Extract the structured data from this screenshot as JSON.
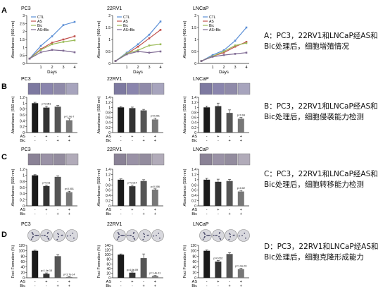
{
  "rows": [
    {
      "letter": "A",
      "type": "line",
      "xlabel": "Days",
      "ylabel": "Absorbance (450 nm)",
      "legend": [
        "CTL",
        "AS",
        "Bic",
        "AS+Bic"
      ],
      "series_colors": [
        "#5b8fd6",
        "#c0504d",
        "#9bbb59",
        "#7f6a93"
      ],
      "panels": [
        {
          "title": "PC3",
          "x": [
            0,
            1,
            2,
            3,
            4
          ],
          "ylim": [
            0,
            3
          ],
          "yticks": [
            "0",
            "0.5",
            "1",
            "1.5",
            "2",
            "2.5",
            "3"
          ],
          "series": [
            [
              0.3,
              1.1,
              1.7,
              2.4,
              2.6
            ],
            [
              0.3,
              0.9,
              1.3,
              1.5,
              1.7
            ],
            [
              0.3,
              0.85,
              1.2,
              1.35,
              1.45
            ],
            [
              0.3,
              0.7,
              0.85,
              0.8,
              0.7
            ]
          ]
        },
        {
          "title": "22RV1",
          "x": [
            0,
            1,
            2,
            3,
            4
          ],
          "ylim": [
            0,
            2
          ],
          "yticks": [
            "0",
            "0.5",
            "1",
            "1.5",
            "2"
          ],
          "series": [
            [
              0.1,
              0.45,
              0.8,
              1.2,
              1.75
            ],
            [
              0.1,
              0.4,
              0.7,
              1.05,
              1.4
            ],
            [
              0.1,
              0.42,
              0.55,
              0.75,
              0.8
            ],
            [
              0.1,
              0.38,
              0.5,
              0.45,
              0.5
            ]
          ]
        },
        {
          "title": "LNCaP",
          "x": [
            0,
            1,
            2,
            3,
            4
          ],
          "ylim": [
            0,
            2
          ],
          "yticks": [
            "0",
            "0.5",
            "1",
            "1.5",
            "2"
          ],
          "series": [
            [
              0.1,
              0.35,
              0.55,
              0.95,
              1.5
            ],
            [
              0.1,
              0.3,
              0.45,
              0.7,
              0.9
            ],
            [
              0.1,
              0.3,
              0.5,
              0.75,
              0.85
            ],
            [
              0.1,
              0.28,
              0.35,
              0.4,
              0.45
            ]
          ]
        }
      ],
      "caption": "A：PC3，22RV1和LNCaP经AS和Bic处理后，细胞增殖情况"
    },
    {
      "letter": "B",
      "type": "bar",
      "ylabel": "Absorbance (550 nm)",
      "row_labels": [
        "AS",
        "Bic"
      ],
      "signs": [
        [
          "-",
          "+",
          "-",
          "+"
        ],
        [
          "-",
          "-",
          "+",
          "+"
        ]
      ],
      "panels": [
        {
          "title": "PC3",
          "values": [
            1.0,
            0.85,
            0.88,
            0.42
          ],
          "errors": [
            0.03,
            0.05,
            0.04,
            0.05
          ],
          "ylim": [
            0,
            1.2
          ],
          "yticks": [
            "0",
            "0.2",
            "0.4",
            "0.6",
            "0.8",
            "1",
            "1.2"
          ],
          "pvals": [
            "",
            "p=0.051",
            "",
            "p<1.0e-7"
          ]
        },
        {
          "title": "22RV1",
          "values": [
            1.0,
            0.97,
            0.88,
            0.52
          ],
          "errors": [
            0.03,
            0.04,
            0.04,
            0.05
          ],
          "ylim": [
            0,
            1.4
          ],
          "yticks": [
            "0",
            "0.2",
            "0.4",
            "0.6",
            "0.8",
            "1",
            "1.2",
            "1.4"
          ],
          "pvals": [
            "",
            "",
            "",
            "p<0.001"
          ]
        },
        {
          "title": "LNCaP",
          "values": [
            1.0,
            1.05,
            0.78,
            0.55
          ],
          "errors": [
            0.05,
            0.12,
            0.12,
            0.05
          ],
          "ylim": [
            0,
            1.4
          ],
          "yticks": [
            "0",
            "0.2",
            "0.4",
            "0.6",
            "0.8",
            "1",
            "1.2",
            "1.4"
          ],
          "pvals": [
            "",
            "",
            "",
            "p=0.04"
          ]
        }
      ],
      "caption": "B：PC3，22RV1和LNCaP经AS和Bic处理后，细胞侵袭能力检测"
    },
    {
      "letter": "C",
      "type": "bar",
      "ylabel": "Absorbance (550 nm)",
      "row_labels": [
        "AS",
        "Bic"
      ],
      "signs": [
        [
          "-",
          "+",
          "-",
          "+"
        ],
        [
          "-",
          "-",
          "+",
          "+"
        ]
      ],
      "panels": [
        {
          "title": "PC3",
          "values": [
            1.0,
            0.65,
            0.95,
            0.45
          ],
          "errors": [
            0.02,
            0.03,
            0.03,
            0.03
          ],
          "ylim": [
            0,
            1.2
          ],
          "yticks": [
            "0",
            "0.2",
            "0.4",
            "0.6",
            "0.8",
            "1",
            "1.2"
          ],
          "pvals": [
            "",
            "p=0.01",
            "",
            "p<0.001"
          ]
        },
        {
          "title": "22RV1",
          "values": [
            1.0,
            0.75,
            0.95,
            0.62
          ],
          "errors": [
            0.03,
            0.05,
            0.05,
            0.03
          ],
          "ylim": [
            0,
            1.4
          ],
          "yticks": [
            "0",
            "0.2",
            "0.4",
            "0.6",
            "0.8",
            "1",
            "1.2",
            "1.4"
          ],
          "pvals": [
            "",
            "p=0.014",
            "",
            "p=0.006"
          ]
        },
        {
          "title": "LNCaP",
          "values": [
            1.0,
            0.92,
            0.95,
            0.55
          ],
          "errors": [
            0.05,
            0.1,
            0.06,
            0.04
          ],
          "ylim": [
            0,
            1.4
          ],
          "yticks": [
            "0",
            "0.2",
            "0.4",
            "0.6",
            "0.8",
            "1",
            "1.2",
            "1.4"
          ],
          "pvals": [
            "",
            "",
            "",
            "p<0.02"
          ]
        }
      ],
      "caption": "C：PC3，22RV1和LNCaP经AS和Bic处理后，细胞转移能力检测"
    },
    {
      "letter": "D",
      "type": "bar",
      "ylabel": "Foci Formation (%)",
      "row_labels": [
        "AS",
        "Bic"
      ],
      "signs": [
        [
          "-",
          "+",
          "-",
          "+"
        ],
        [
          "-",
          "-",
          "+",
          "+"
        ]
      ],
      "panels": [
        {
          "title": "PC3",
          "values": [
            100,
            15,
            80,
            3
          ],
          "errors": [
            2,
            3,
            6,
            1
          ],
          "ylim": [
            0,
            120
          ],
          "yticks": [
            "0",
            "20",
            "40",
            "60",
            "80",
            "100",
            "120"
          ],
          "pvals": [
            "",
            "p=1.4e-15",
            "",
            "p=3.7e-14"
          ]
        },
        {
          "title": "22RV1",
          "values": [
            100,
            22,
            85,
            8
          ],
          "errors": [
            3,
            3,
            18,
            2
          ],
          "ylim": [
            0,
            140
          ],
          "yticks": [
            "0",
            "20",
            "40",
            "60",
            "80",
            "100",
            "120",
            "140"
          ],
          "pvals": [
            "",
            "p=4.6e-09",
            "",
            "p=1.4e-11"
          ]
        },
        {
          "title": "LNCaP",
          "values": [
            100,
            60,
            88,
            32
          ],
          "errors": [
            3,
            4,
            5,
            3
          ],
          "ylim": [
            0,
            120
          ],
          "yticks": [
            "0",
            "20",
            "40",
            "60",
            "80",
            "100",
            "120"
          ],
          "pvals": [
            "",
            "p=0.002",
            "",
            "p=1.0e-03"
          ]
        }
      ],
      "caption": "D：PC3，22RV1和LNCaP经AS和Bic处理后，细胞克隆形成能力"
    }
  ]
}
